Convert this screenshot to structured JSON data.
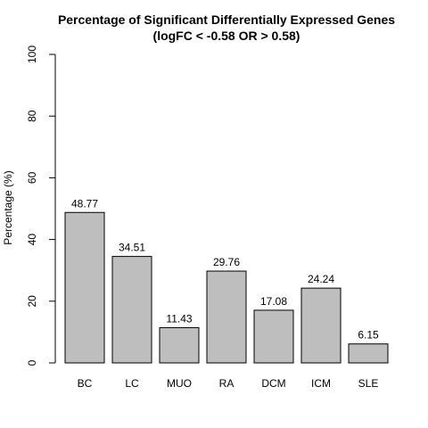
{
  "chart_data": {
    "type": "bar",
    "title": "Percentage of Significant Differentially Expressed Genes",
    "subtitle": "(logFC < -0.58 OR > 0.58)",
    "xlabel": "",
    "ylabel": "Percentage (%)",
    "ylim": [
      0,
      100
    ],
    "yticks": [
      "0",
      "20",
      "40",
      "60",
      "80",
      "100"
    ],
    "grid": false,
    "categories": [
      "BC",
      "LC",
      "MUO",
      "RA",
      "DCM",
      "ICM",
      "SLE"
    ],
    "values": [
      48.77,
      34.51,
      11.43,
      29.76,
      17.08,
      24.24,
      6.15
    ],
    "value_labels": [
      "48.77",
      "34.51",
      "11.43",
      "29.76",
      "17.08",
      "24.24",
      "6.15"
    ],
    "bar_color": "#bebebe",
    "bar_edge_color": "#000000"
  }
}
